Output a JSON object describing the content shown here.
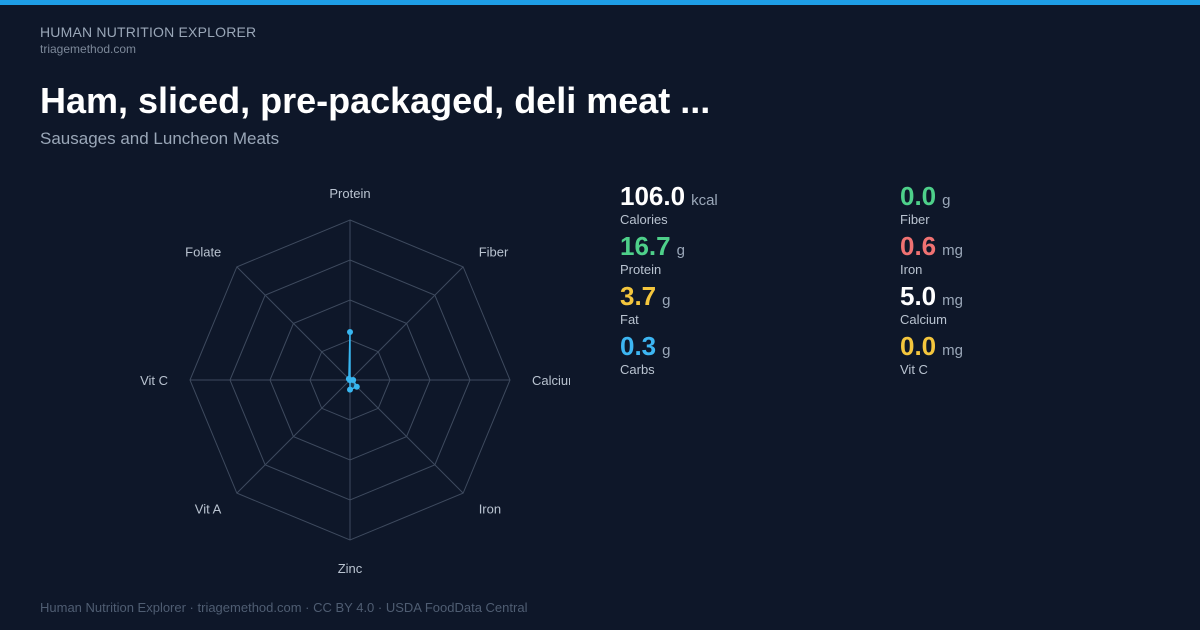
{
  "header": {
    "brand": "HUMAN NUTRITION EXPLORER",
    "url": "triagemethod.com",
    "title": "Ham, sliced, pre-packaged, deli meat ...",
    "subtitle": "Sausages and Luncheon Meats"
  },
  "chart_data": {
    "type": "radar",
    "axes": [
      "Protein",
      "Fiber",
      "Calcium",
      "Iron",
      "Zinc",
      "Vit A",
      "Vit C",
      "Folate"
    ],
    "values": [
      0.3,
      0.0,
      0.02,
      0.06,
      0.06,
      0.0,
      0.0,
      0.01
    ],
    "rlim": [
      0,
      1
    ],
    "rings": 4,
    "grid": true,
    "colors": {
      "grid": "#3e4a5e",
      "series": "#38b6f0"
    }
  },
  "stats": {
    "left": [
      {
        "value": "106.0",
        "unit": "kcal",
        "label": "Calories",
        "color": "#ffffff"
      },
      {
        "value": "16.7",
        "unit": "g",
        "label": "Protein",
        "color": "#4ed08a"
      },
      {
        "value": "3.7",
        "unit": "g",
        "label": "Fat",
        "color": "#f4c63d"
      },
      {
        "value": "0.3",
        "unit": "g",
        "label": "Carbs",
        "color": "#3db6f2"
      }
    ],
    "right": [
      {
        "value": "0.0",
        "unit": "g",
        "label": "Fiber",
        "color": "#4ed08a"
      },
      {
        "value": "0.6",
        "unit": "mg",
        "label": "Iron",
        "color": "#f07272"
      },
      {
        "value": "5.0",
        "unit": "mg",
        "label": "Calcium",
        "color": "#ffffff"
      },
      {
        "value": "0.0",
        "unit": "mg",
        "label": "Vit C",
        "color": "#f4c63d"
      }
    ]
  },
  "footer": {
    "text": "Human Nutrition Explorer · triagemethod.com · CC BY 4.0 · USDA FoodData Central"
  }
}
